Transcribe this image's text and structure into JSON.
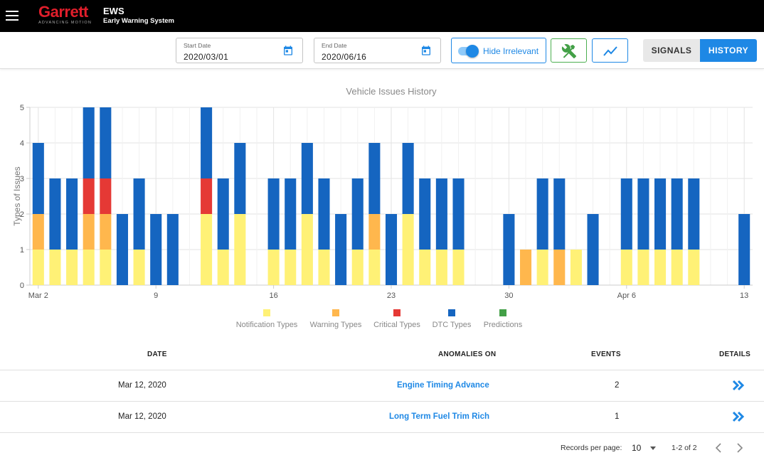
{
  "header": {
    "logo_text": "Garrett",
    "logo_tagline": "ADVANCING MOTION",
    "app_name": "EWS",
    "app_subtitle": "Early Warning System"
  },
  "toolbar": {
    "start_date_label": "Start Date",
    "start_date_value": "2020/03/01",
    "end_date_label": "End Date",
    "end_date_value": "2020/06/16",
    "hide_irrelevant_label": "Hide Irrelevant",
    "hide_irrelevant_on": true,
    "signals_label": "SIGNALS",
    "history_label": "HISTORY",
    "active_tab": "HISTORY"
  },
  "chart_data": {
    "type": "bar",
    "stacked": true,
    "title": "Vehicle Issues History",
    "ylabel": "Types of Issues",
    "xlabel": "",
    "ylim": [
      0,
      5
    ],
    "y_ticks": [
      "0",
      "1",
      "2",
      "3",
      "4",
      "5"
    ],
    "x_ticks": [
      "Mar 2",
      "9",
      "16",
      "23",
      "30",
      "Apr 6",
      "13"
    ],
    "grid": true,
    "legend_position": "bottom",
    "categories": [
      "2020-03-02",
      "2020-03-03",
      "2020-03-04",
      "2020-03-05",
      "2020-03-06",
      "2020-03-07",
      "2020-03-08",
      "2020-03-09",
      "2020-03-10",
      "2020-03-11",
      "2020-03-12",
      "2020-03-13",
      "2020-03-14",
      "2020-03-15",
      "2020-03-16",
      "2020-03-17",
      "2020-03-18",
      "2020-03-19",
      "2020-03-20",
      "2020-03-21",
      "2020-03-22",
      "2020-03-23",
      "2020-03-24",
      "2020-03-25",
      "2020-03-26",
      "2020-03-27",
      "2020-03-28",
      "2020-03-29",
      "2020-03-30",
      "2020-03-31",
      "2020-04-01",
      "2020-04-02",
      "2020-04-03",
      "2020-04-04",
      "2020-04-05",
      "2020-04-06",
      "2020-04-07",
      "2020-04-08",
      "2020-04-09",
      "2020-04-10",
      "2020-04-11",
      "2020-04-12",
      "2020-04-13"
    ],
    "series": [
      {
        "name": "Notification Types",
        "color": "#fff176",
        "values": [
          1,
          1,
          1,
          1,
          1,
          0,
          1,
          0,
          0,
          0,
          2,
          1,
          2,
          0,
          1,
          1,
          2,
          1,
          0,
          1,
          1,
          0,
          2,
          1,
          1,
          1,
          0,
          0,
          0,
          0,
          1,
          0,
          1,
          0,
          0,
          1,
          1,
          1,
          1,
          1,
          0,
          0,
          0
        ]
      },
      {
        "name": "Warning Types",
        "color": "#ffb74d",
        "values": [
          1,
          0,
          0,
          1,
          1,
          0,
          0,
          0,
          0,
          0,
          0,
          0,
          0,
          0,
          0,
          0,
          0,
          0,
          0,
          0,
          1,
          0,
          0,
          0,
          0,
          0,
          0,
          0,
          0,
          1,
          0,
          1,
          0,
          0,
          0,
          0,
          0,
          0,
          0,
          0,
          0,
          0,
          0
        ]
      },
      {
        "name": "Critical Types",
        "color": "#e53935",
        "values": [
          0,
          0,
          0,
          1,
          1,
          0,
          0,
          0,
          0,
          0,
          1,
          0,
          0,
          0,
          0,
          0,
          0,
          0,
          0,
          0,
          0,
          0,
          0,
          0,
          0,
          0,
          0,
          0,
          0,
          0,
          0,
          0,
          0,
          0,
          0,
          0,
          0,
          0,
          0,
          0,
          0,
          0,
          0
        ]
      },
      {
        "name": "DTC Types",
        "color": "#1565c0",
        "values": [
          2,
          2,
          2,
          2,
          2,
          2,
          2,
          2,
          2,
          0,
          2,
          2,
          2,
          0,
          2,
          2,
          2,
          2,
          2,
          2,
          2,
          2,
          2,
          2,
          2,
          2,
          0,
          0,
          2,
          0,
          2,
          2,
          0,
          2,
          0,
          2,
          2,
          2,
          2,
          2,
          0,
          0,
          2
        ]
      },
      {
        "name": "Predictions",
        "color": "#43a047",
        "values": [
          0,
          0,
          0,
          0,
          0,
          0,
          0,
          0,
          0,
          0,
          0,
          0,
          0,
          0,
          0,
          0,
          0,
          0,
          0,
          0,
          0,
          0,
          0,
          0,
          0,
          0,
          0,
          0,
          0,
          0,
          0,
          0,
          0,
          0,
          0,
          0,
          0,
          0,
          0,
          0,
          0,
          0,
          0
        ]
      }
    ]
  },
  "table": {
    "headers": {
      "date": "DATE",
      "anomalies": "ANOMALIES ON",
      "events": "EVENTS",
      "details": "DETAILS"
    },
    "rows": [
      {
        "date": "Mar 12, 2020",
        "anomaly": "Engine Timing Advance",
        "events": "2"
      },
      {
        "date": "Mar 12, 2020",
        "anomaly": "Long Term Fuel Trim Rich",
        "events": "1"
      }
    ]
  },
  "pagination": {
    "records_per_page_label": "Records per page:",
    "records_per_page": "10",
    "range_text": "1-2 of 2"
  },
  "icons": {
    "menu": "menu-icon",
    "calendar": "calendar-icon",
    "tools": "tools-icon",
    "trend": "trend-line-icon",
    "details": "double-chevron-right-icon",
    "prev": "chevron-left-icon",
    "next": "chevron-right-icon"
  },
  "colors": {
    "accent": "#1e88e5",
    "brand_red": "#e01e2b",
    "tool_green": "#4caf50"
  }
}
